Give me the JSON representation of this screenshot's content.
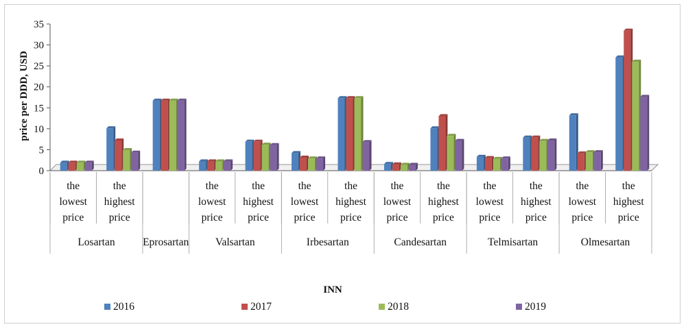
{
  "chart_data": {
    "type": "bar",
    "title": "",
    "xlabel": "INN",
    "ylabel": "price per DDD, USD",
    "ylim": [
      0,
      35
    ],
    "yticks": [
      0,
      5,
      10,
      15,
      20,
      25,
      30,
      35
    ],
    "grid": false,
    "legend_position": "bottom",
    "colors": [
      "#4f81bd",
      "#c0504d",
      "#9bbb59",
      "#8064a2"
    ],
    "categories": [
      {
        "label": [
          "the",
          "lowest",
          "price"
        ],
        "group": "Losartan"
      },
      {
        "label": [
          "the",
          "highest",
          "price"
        ],
        "group": "Losartan"
      },
      {
        "label": [],
        "group": "Eprosartan"
      },
      {
        "label": [
          "the",
          "lowest",
          "price"
        ],
        "group": "Valsartan"
      },
      {
        "label": [
          "the",
          "highest",
          "price"
        ],
        "group": "Valsartan"
      },
      {
        "label": [
          "the",
          "lowest",
          "price"
        ],
        "group": "Irbesartan"
      },
      {
        "label": [
          "the",
          "highest",
          "price"
        ],
        "group": "Irbesartan"
      },
      {
        "label": [
          "the",
          "lowest",
          "price"
        ],
        "group": "Candesartan"
      },
      {
        "label": [
          "the",
          "highest",
          "price"
        ],
        "group": "Candesartan"
      },
      {
        "label": [
          "the",
          "lowest",
          "price"
        ],
        "group": "Telmisartan"
      },
      {
        "label": [
          "the",
          "highest",
          "price"
        ],
        "group": "Telmisartan"
      },
      {
        "label": [
          "the",
          "lowest",
          "price"
        ],
        "group": "Olmesartan"
      },
      {
        "label": [
          "the",
          "highest",
          "price"
        ],
        "group": "Olmesartan"
      }
    ],
    "groups": [
      "Losartan",
      "Eprosartan",
      "Valsartan",
      "Irbesartan",
      "Candesartan",
      "Telmisartan",
      "Olmesartan"
    ],
    "series": [
      {
        "name": "2016",
        "values": [
          1.9,
          10.1,
          16.7,
          2.2,
          6.9,
          4.2,
          17.3,
          1.6,
          10.1,
          3.3,
          7.9,
          13.2,
          27.0
        ]
      },
      {
        "name": "2017",
        "values": [
          1.9,
          7.2,
          16.7,
          2.2,
          6.9,
          3.1,
          17.3,
          1.5,
          13.0,
          3.0,
          7.9,
          4.1,
          33.4
        ]
      },
      {
        "name": "2018",
        "values": [
          1.9,
          4.9,
          16.7,
          2.2,
          6.2,
          2.9,
          17.3,
          1.4,
          8.3,
          2.8,
          7.1,
          4.4,
          26.0
        ]
      },
      {
        "name": "2019",
        "values": [
          1.9,
          4.3,
          16.7,
          2.2,
          6.1,
          2.9,
          6.8,
          1.4,
          7.1,
          2.9,
          7.2,
          4.4,
          17.6
        ]
      }
    ]
  }
}
